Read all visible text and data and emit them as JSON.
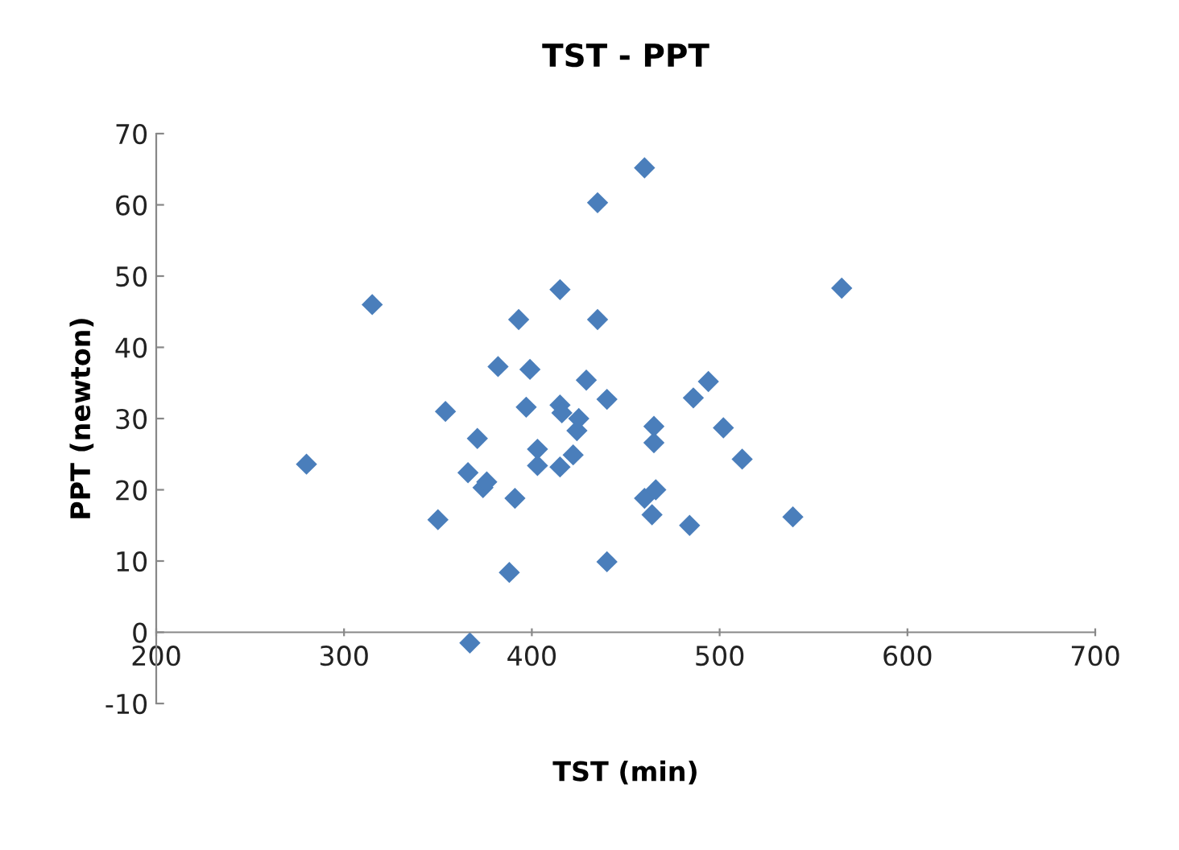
{
  "chart_data": {
    "type": "scatter",
    "title": "TST - PPT",
    "xlabel": "TST (min)",
    "ylabel": "PPT (newton)",
    "x": [
      280,
      315,
      350,
      354,
      366,
      367,
      371,
      374,
      376,
      382,
      388,
      391,
      393,
      397,
      399,
      403,
      403,
      415,
      415,
      415,
      416,
      422,
      424,
      425,
      429,
      435,
      435,
      440,
      440,
      460,
      460,
      464,
      465,
      465,
      466,
      484,
      486,
      494,
      502,
      512,
      539,
      565
    ],
    "series": [
      {
        "color": "#4a7ebb",
        "values": [
          23.6,
          46,
          15.8,
          31,
          22.4,
          -1.5,
          27.2,
          20.3,
          21.1,
          37.3,
          8.4,
          18.8,
          43.9,
          31.6,
          36.9,
          25.7,
          23.4,
          48.1,
          31.9,
          23.2,
          30.8,
          24.9,
          28.3,
          30,
          35.4,
          60.3,
          43.9,
          9.9,
          32.7,
          65.2,
          18.8,
          16.5,
          28.9,
          26.6,
          20,
          15,
          32.9,
          35.2,
          28.7,
          24.3,
          16.2,
          48.3
        ]
      }
    ],
    "xlim": [
      200,
      700
    ],
    "ylim": [
      -10,
      70
    ],
    "xticks": [
      200,
      300,
      400,
      500,
      600,
      700
    ],
    "yticks": [
      -10,
      0,
      10,
      20,
      30,
      40,
      50,
      60,
      70
    ],
    "marker": "diamond",
    "grid": false,
    "legend": false
  }
}
